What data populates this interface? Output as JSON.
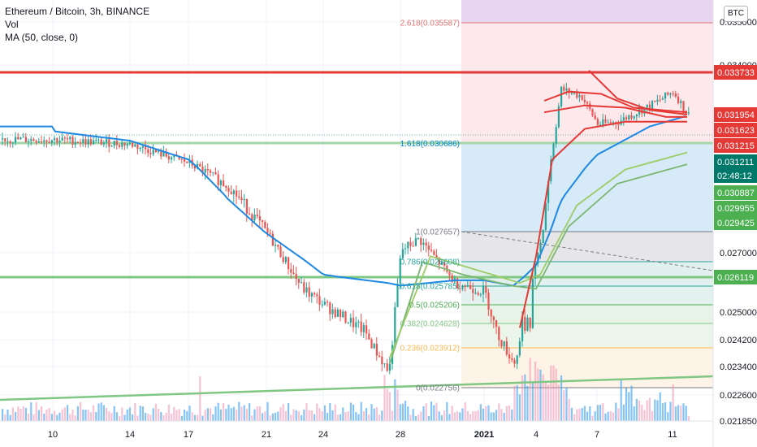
{
  "legend": {
    "symbol": "Ethereum / Bitcoin, 3h, BINANCE",
    "volume": "Vol",
    "ma": "MA (50, close, 0)"
  },
  "currency_badge": "BTC",
  "colors": {
    "up": "#26a69a",
    "down": "#ef5350",
    "ma_blue": "#2196f3",
    "red_line": "#e53935",
    "green_line": "#7cb772",
    "fib_area_top": "#e1bee7"
  },
  "chart_data": {
    "type": "candlestick",
    "title": "Ethereum / Bitcoin, 3h, BINANCE",
    "x_tick_labels": [
      "10",
      "14",
      "17",
      "21",
      "24",
      "28",
      "2021",
      "4",
      "7",
      "11"
    ],
    "y_tick_labels": [
      "0.035000",
      "0.034000",
      "0.027000",
      "0.025000",
      "0.024200",
      "0.023400",
      "0.022600",
      "0.021850"
    ],
    "ylim": [
      0.02185,
      0.0362
    ],
    "price_path": [
      [
        "10",
        0.03085
      ],
      [
        "14",
        0.03065
      ],
      [
        "17",
        0.02985
      ],
      [
        "19",
        0.029
      ],
      [
        "21",
        0.0276
      ],
      [
        "23",
        0.0257
      ],
      [
        "24",
        0.0252
      ],
      [
        "26",
        0.0244
      ],
      [
        "27",
        0.0231
      ],
      [
        "28",
        0.027
      ],
      [
        "29",
        0.0274
      ],
      [
        "31",
        0.0259
      ],
      [
        "2021",
        0.0256
      ],
      [
        "2",
        0.0244
      ],
      [
        "3",
        0.0234
      ],
      [
        "4",
        0.026
      ],
      [
        "5",
        0.033
      ],
      [
        "6",
        0.0327
      ],
      [
        "7",
        0.0315
      ],
      [
        "8",
        0.0316
      ],
      [
        "10",
        0.0323
      ],
      [
        "11",
        0.0329
      ],
      [
        "11.5",
        0.0319
      ]
    ],
    "ma_50_path": [
      [
        "10",
        0.0312
      ],
      [
        "14",
        0.0308
      ],
      [
        "17",
        0.03
      ],
      [
        "19",
        0.0286
      ],
      [
        "21",
        0.0276
      ],
      [
        "24",
        0.0262
      ],
      [
        "27",
        0.0259
      ],
      [
        "28",
        0.0258
      ],
      [
        "31",
        0.026
      ],
      [
        "2021",
        0.026
      ],
      [
        "3",
        0.0258
      ],
      [
        "4",
        0.0265
      ],
      [
        "5",
        0.0285
      ],
      [
        "7",
        0.0302
      ],
      [
        "10",
        0.0314
      ],
      [
        "11.5",
        0.03185
      ]
    ],
    "fibonacci": [
      {
        "label": "2.618(0.035587)",
        "price": 0.035587,
        "color": "#e57373"
      },
      {
        "label": "1.618(0.030686)",
        "price": 0.030686,
        "color": "#0288d1"
      },
      {
        "label": "1(0.027657)",
        "price": 0.027657,
        "color": "#787b86"
      },
      {
        "label": "0.786(0.026608)",
        "price": 0.026608,
        "color": "#26a69a"
      },
      {
        "label": "0.618(0.025785)",
        "price": 0.025785,
        "color": "#26a69a"
      },
      {
        "label": "0.5(0.025206)",
        "price": 0.025206,
        "color": "#4caf50"
      },
      {
        "label": "0.382(0.024628)",
        "price": 0.024628,
        "color": "#81c784"
      },
      {
        "label": "0.236(0.023912)",
        "price": 0.023912,
        "color": "#ffb74d"
      },
      {
        "label": "0(0.022756)",
        "price": 0.022756,
        "color": "#787b86"
      }
    ],
    "horizontal_levels": [
      {
        "price": 0.033733,
        "color": "#e53935"
      },
      {
        "price": 0.030686,
        "color": "#7cb772"
      },
      {
        "price": 0.026119,
        "color": "#7cb772"
      }
    ],
    "price_tags": [
      {
        "text": "0.033733",
        "price": 0.033733,
        "bg": "#e53935",
        "fg": "#ffffff"
      },
      {
        "text": "0.031954",
        "price": 0.031954,
        "bg": "#e53935",
        "fg": "#ffffff"
      },
      {
        "text": "0.031623",
        "price": 0.031623,
        "bg": "#e53935",
        "fg": "#ffffff"
      },
      {
        "text": "0.031215",
        "price": 0.031215,
        "bg": "#e53935",
        "fg": "#ffffff"
      },
      {
        "text": "0.031211",
        "price": 0.031211,
        "bg": "#00796b",
        "fg": "#ffffff"
      },
      {
        "text": "02:48:12",
        "price": 0.0308,
        "bg": "#00796b",
        "fg": "#ffffff"
      },
      {
        "text": "0.030887",
        "price": 0.030887,
        "bg": "#4caf50",
        "fg": "#ffffff"
      },
      {
        "text": "0.029955",
        "price": 0.029955,
        "bg": "#4caf50",
        "fg": "#ffffff"
      },
      {
        "text": "0.029425",
        "price": 0.029425,
        "bg": "#4caf50",
        "fg": "#ffffff"
      },
      {
        "text": "0.026119",
        "price": 0.026119,
        "bg": "#4caf50",
        "fg": "#ffffff"
      }
    ]
  }
}
